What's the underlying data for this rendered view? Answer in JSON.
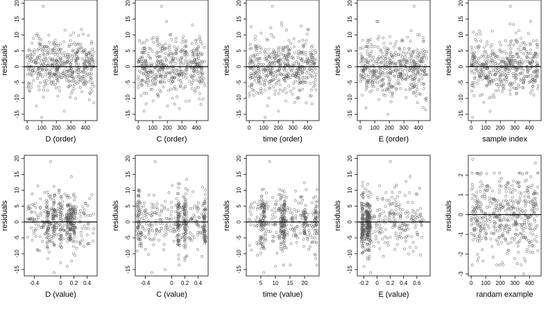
{
  "figure": {
    "background": "#ffffff",
    "point_color": "#555555",
    "zero_line_color": "#000000"
  },
  "chart_data": [
    {
      "type": "scatter",
      "xlabel": "D (order)",
      "ylabel": "residuals",
      "xlim": [
        -20,
        480
      ],
      "ylim": [
        -17,
        21
      ],
      "xticks": [
        0,
        100,
        200,
        300,
        400
      ],
      "yticks": [
        -15,
        -10,
        -5,
        0,
        5,
        10,
        15,
        20
      ],
      "zero_line": 0,
      "grid": false,
      "legend": "none",
      "n_points": 460,
      "x_range": [
        0,
        460
      ],
      "y_range": [
        -16,
        19
      ],
      "y_spread_sd": 4.5,
      "x_cluster_centers": [],
      "highlight_points": [
        {
          "x": 110,
          "y": 19
        },
        {
          "x": 100,
          "y": -16
        },
        {
          "x": 255,
          "y": -14
        }
      ]
    },
    {
      "type": "scatter",
      "xlabel": "C (order)",
      "ylabel": "residuals",
      "xlim": [
        -20,
        480
      ],
      "ylim": [
        -17,
        21
      ],
      "xticks": [
        0,
        100,
        200,
        300,
        400
      ],
      "yticks": [
        -15,
        -10,
        -5,
        0,
        5,
        10,
        15,
        20
      ],
      "zero_line": 0,
      "grid": false,
      "legend": "none",
      "n_points": 460,
      "x_range": [
        0,
        460
      ],
      "y_range": [
        -16,
        19
      ],
      "y_spread_sd": 4.5,
      "x_cluster_centers": [],
      "highlight_points": [
        {
          "x": 160,
          "y": 19
        },
        {
          "x": 40,
          "y": -14
        },
        {
          "x": 150,
          "y": -16
        }
      ]
    },
    {
      "type": "scatter",
      "xlabel": "time (order)",
      "ylabel": "residuals",
      "xlim": [
        -20,
        480
      ],
      "ylim": [
        -17,
        21
      ],
      "xticks": [
        0,
        100,
        200,
        300,
        400
      ],
      "yticks": [
        -15,
        -10,
        -5,
        0,
        5,
        10,
        15,
        20
      ],
      "zero_line": 0,
      "grid": false,
      "legend": "none",
      "n_points": 460,
      "x_range": [
        0,
        460
      ],
      "y_range": [
        -16,
        19
      ],
      "y_spread_sd": 4.5,
      "x_cluster_centers": [],
      "highlight_points": [
        {
          "x": 160,
          "y": 19
        },
        {
          "x": 110,
          "y": -16
        },
        {
          "x": 200,
          "y": -14
        }
      ]
    },
    {
      "type": "scatter",
      "xlabel": "E (order)",
      "ylabel": "residuals",
      "xlim": [
        -20,
        480
      ],
      "ylim": [
        -17,
        21
      ],
      "xticks": [
        0,
        100,
        200,
        300,
        400
      ],
      "yticks": [
        -15,
        -10,
        -5,
        0,
        5,
        10,
        15,
        20
      ],
      "zero_line": 0,
      "grid": false,
      "legend": "none",
      "n_points": 460,
      "x_range": [
        0,
        460
      ],
      "y_range": [
        -16,
        19
      ],
      "y_spread_sd": 4.5,
      "x_cluster_centers": [],
      "highlight_points": [
        {
          "x": 370,
          "y": 19
        },
        {
          "x": 40,
          "y": -13
        },
        {
          "x": 190,
          "y": -15
        }
      ]
    },
    {
      "type": "scatter",
      "xlabel": "sample index",
      "ylabel": "residuals",
      "xlim": [
        -20,
        480
      ],
      "ylim": [
        -17,
        21
      ],
      "xticks": [
        0,
        100,
        200,
        300,
        400
      ],
      "yticks": [
        -15,
        -10,
        -5,
        0,
        5,
        10,
        15,
        20
      ],
      "zero_line": 0,
      "grid": false,
      "legend": "none",
      "n_points": 460,
      "x_range": [
        0,
        460
      ],
      "y_range": [
        -16,
        19
      ],
      "y_spread_sd": 4.5,
      "x_cluster_centers": [],
      "highlight_points": [
        {
          "x": 270,
          "y": 19
        },
        {
          "x": 130,
          "y": -14
        },
        {
          "x": 10,
          "y": -16
        }
      ]
    },
    {
      "type": "scatter",
      "xlabel": "D (value)",
      "ylabel": "residuals",
      "xlim": [
        -0.55,
        0.55
      ],
      "ylim": [
        -17,
        21
      ],
      "xticks": [
        -0.4,
        0.0,
        0.2,
        0.4
      ],
      "yticks": [
        -15,
        -10,
        -5,
        0,
        5,
        10,
        15,
        20
      ],
      "zero_line": 0,
      "grid": false,
      "legend": "none",
      "n_points": 460,
      "x_range": [
        -0.5,
        0.5
      ],
      "y_range": [
        -16,
        19
      ],
      "y_spread_sd": 4.5,
      "x_cluster_centers": [
        -0.2,
        -0.1,
        0.0,
        0.1,
        0.15,
        0.2
      ],
      "highlight_points": [
        {
          "x": -0.15,
          "y": 19
        },
        {
          "x": -0.1,
          "y": -16
        },
        {
          "x": 0.1,
          "y": -14
        }
      ]
    },
    {
      "type": "scatter",
      "xlabel": "C (value)",
      "ylabel": "residuals",
      "xlim": [
        -0.55,
        0.55
      ],
      "ylim": [
        -17,
        21
      ],
      "xticks": [
        -0.4,
        0.0,
        0.2,
        0.4
      ],
      "yticks": [
        -15,
        -10,
        -5,
        0,
        5,
        10,
        15,
        20
      ],
      "zero_line": 0,
      "grid": false,
      "legend": "none",
      "n_points": 460,
      "x_range": [
        -0.5,
        0.5
      ],
      "y_range": [
        -16,
        19
      ],
      "y_spread_sd": 4.5,
      "x_cluster_centers": [
        -0.5,
        0.1,
        0.2,
        0.5
      ],
      "highlight_points": [
        {
          "x": -0.25,
          "y": 19
        },
        {
          "x": -0.3,
          "y": -16
        },
        {
          "x": -0.1,
          "y": -15
        }
      ]
    },
    {
      "type": "scatter",
      "xlabel": "time (value)",
      "ylabel": "residuals",
      "xlim": [
        0,
        25
      ],
      "ylim": [
        -17,
        21
      ],
      "xticks": [
        5,
        10,
        15,
        20
      ],
      "yticks": [
        -15,
        -10,
        -5,
        0,
        5,
        10,
        15,
        20
      ],
      "zero_line": 0,
      "grid": false,
      "legend": "none",
      "n_points": 460,
      "x_range": [
        1,
        24
      ],
      "y_range": [
        -16,
        19
      ],
      "y_spread_sd": 4.5,
      "x_cluster_centers": [
        5,
        6,
        12,
        13,
        20,
        24
      ],
      "highlight_points": [
        {
          "x": 8,
          "y": 19
        },
        {
          "x": 6,
          "y": -16
        },
        {
          "x": 10,
          "y": -14
        }
      ]
    },
    {
      "type": "scatter",
      "xlabel": "E (value)",
      "ylabel": "residuals",
      "xlim": [
        -0.3,
        0.8
      ],
      "ylim": [
        -17,
        21
      ],
      "xticks": [
        -0.2,
        0.0,
        0.2,
        0.4,
        0.6
      ],
      "yticks": [
        -15,
        -10,
        -5,
        0,
        5,
        10,
        15,
        20
      ],
      "zero_line": 0,
      "grid": false,
      "legend": "none",
      "n_points": 460,
      "x_range": [
        -0.25,
        0.7
      ],
      "y_range": [
        -16,
        19
      ],
      "y_spread_sd": 4.5,
      "x_cluster_centers": [
        -0.22,
        -0.15,
        -0.12
      ],
      "highlight_points": [
        {
          "x": 0.2,
          "y": 19
        },
        {
          "x": -0.2,
          "y": -14
        },
        {
          "x": -0.1,
          "y": -16
        }
      ]
    },
    {
      "type": "scatter",
      "xlabel": "randam example",
      "ylabel": "residuals",
      "xlim": [
        -20,
        480
      ],
      "ylim": [
        -3.1,
        3.0
      ],
      "xticks": [
        0,
        100,
        200,
        300,
        400
      ],
      "yticks": [
        -3,
        -2,
        -1,
        0,
        1,
        2
      ],
      "zero_line": 0,
      "grid": false,
      "legend": "none",
      "n_points": 460,
      "x_range": [
        0,
        460
      ],
      "y_range": [
        -3,
        2.8
      ],
      "y_spread_sd": 1.0,
      "x_cluster_centers": [],
      "highlight_points": [
        {
          "x": 10,
          "y": 2.8
        },
        {
          "x": 440,
          "y": 2.6
        },
        {
          "x": 360,
          "y": -3.0
        }
      ]
    }
  ]
}
